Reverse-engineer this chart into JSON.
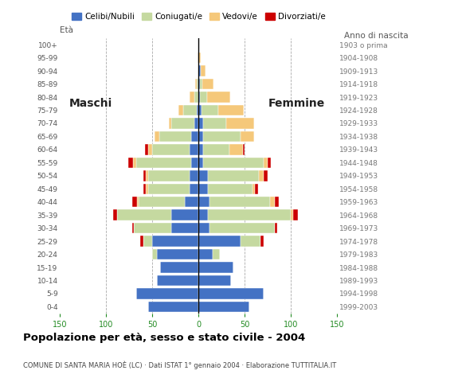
{
  "age_groups": [
    "0-4",
    "5-9",
    "10-14",
    "15-19",
    "20-24",
    "25-29",
    "30-34",
    "35-39",
    "40-44",
    "45-49",
    "50-54",
    "55-59",
    "60-64",
    "65-69",
    "70-74",
    "75-79",
    "80-84",
    "85-89",
    "90-94",
    "95-99",
    "100+"
  ],
  "birth_years": [
    "1999-2003",
    "1994-1998",
    "1989-1993",
    "1984-1988",
    "1979-1983",
    "1974-1978",
    "1969-1973",
    "1964-1968",
    "1959-1963",
    "1954-1958",
    "1949-1953",
    "1944-1948",
    "1939-1943",
    "1934-1938",
    "1929-1933",
    "1924-1928",
    "1919-1923",
    "1914-1918",
    "1909-1913",
    "1904-1908",
    "1903 o prima"
  ],
  "males": {
    "celibe": [
      55,
      68,
      45,
      42,
      45,
      50,
      30,
      30,
      15,
      10,
      10,
      8,
      10,
      8,
      5,
      2,
      0,
      0,
      0,
      0,
      0
    ],
    "coniugato": [
      0,
      0,
      0,
      0,
      5,
      10,
      40,
      58,
      50,
      45,
      45,
      60,
      40,
      35,
      25,
      15,
      5,
      2,
      0,
      0,
      0
    ],
    "vedovo": [
      0,
      0,
      0,
      0,
      0,
      0,
      0,
      0,
      2,
      2,
      2,
      3,
      5,
      5,
      2,
      5,
      5,
      2,
      0,
      1,
      0
    ],
    "divorziato": [
      0,
      0,
      0,
      0,
      0,
      3,
      2,
      5,
      5,
      3,
      3,
      5,
      3,
      0,
      0,
      0,
      0,
      0,
      0,
      0,
      0
    ]
  },
  "females": {
    "nubile": [
      55,
      70,
      35,
      38,
      15,
      45,
      12,
      10,
      12,
      10,
      10,
      5,
      5,
      5,
      5,
      3,
      1,
      1,
      2,
      0,
      0
    ],
    "coniugata": [
      0,
      0,
      0,
      0,
      8,
      22,
      70,
      90,
      65,
      48,
      55,
      65,
      28,
      40,
      25,
      18,
      8,
      3,
      0,
      0,
      0
    ],
    "vedova": [
      0,
      0,
      0,
      0,
      0,
      0,
      0,
      2,
      5,
      3,
      5,
      5,
      15,
      15,
      30,
      28,
      25,
      12,
      5,
      2,
      0
    ],
    "divorziata": [
      0,
      0,
      0,
      0,
      0,
      3,
      3,
      5,
      5,
      3,
      5,
      3,
      2,
      0,
      0,
      0,
      0,
      0,
      0,
      0,
      0
    ]
  },
  "color_celibe": "#4472c4",
  "color_coniugato": "#c5d9a0",
  "color_vedovo": "#f5c87a",
  "color_divorziato": "#cc0000",
  "title": "Popolazione per età, sesso e stato civile - 2004",
  "subtitle": "COMUNE DI SANTA MARIA HOÈ (LC) · Dati ISTAT 1° gennaio 2004 · Elaborazione TUTTITALIA.IT",
  "label_eta": "Età",
  "label_anno": "Anno di nascita",
  "label_maschi": "Maschi",
  "label_femmine": "Femmine",
  "legend_labels": [
    "Celibi/Nubili",
    "Coniugati/e",
    "Vedovi/e",
    "Divorziati/e"
  ]
}
